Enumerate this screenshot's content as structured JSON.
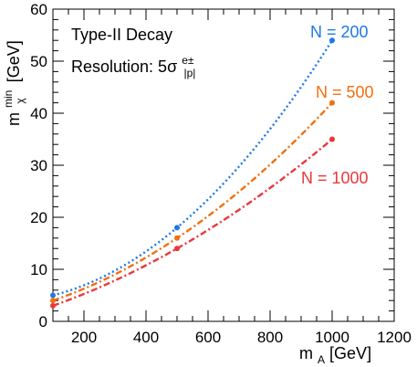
{
  "chart_data": {
    "type": "line",
    "xlabel_main": "m",
    "xlabel_sub": "A",
    "xlabel_unit": " [GeV]",
    "ylabel_main": "m",
    "ylabel_sup": "min",
    "ylabel_sub": "χ",
    "ylabel_unit": " [GeV]",
    "xlim": [
      100,
      1200
    ],
    "ylim": [
      0,
      60
    ],
    "xticks": [
      200,
      400,
      600,
      800,
      1000,
      1200
    ],
    "yticks": [
      0,
      10,
      20,
      30,
      40,
      50,
      60
    ],
    "grid": false,
    "annotations": {
      "line1": "Type-II Decay",
      "line2_main": "Resolution: 5σ",
      "line2_sup": "e±",
      "line2_sub": "|p|"
    },
    "series": [
      {
        "name": "N = 200",
        "color": "#1f78e6",
        "dash": "dot",
        "points": [
          [
            100,
            5
          ],
          [
            500,
            18
          ],
          [
            1000,
            54
          ]
        ]
      },
      {
        "name": "N = 500",
        "color": "#f07010",
        "dash": "dashdot",
        "points": [
          [
            100,
            4
          ],
          [
            500,
            16
          ],
          [
            1000,
            42
          ]
        ]
      },
      {
        "name": "N = 1000",
        "color": "#e8383c",
        "dash": "dashdot",
        "points": [
          [
            100,
            3
          ],
          [
            500,
            14
          ],
          [
            1000,
            35
          ]
        ]
      }
    ]
  }
}
